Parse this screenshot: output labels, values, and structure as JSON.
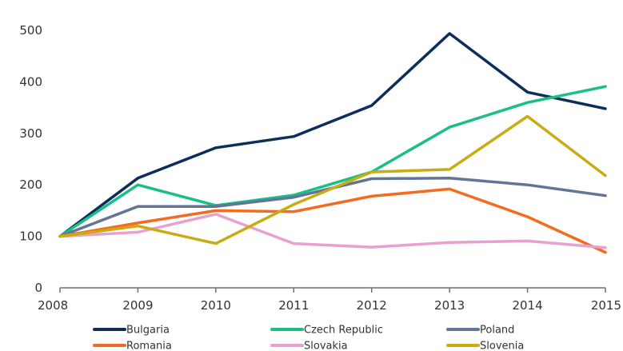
{
  "chart_data": {
    "type": "line",
    "title": "",
    "xlabel": "",
    "ylabel": "",
    "x": [
      "2008",
      "2009",
      "2010",
      "2011",
      "2012",
      "2013",
      "2014",
      "2015"
    ],
    "ylim": [
      0,
      500
    ],
    "yticks": [
      "0",
      "100",
      "200",
      "300",
      "400",
      "500"
    ],
    "grid": false,
    "legend_position": "bottom",
    "series": [
      {
        "name": "Bulgaria",
        "color": "#0d2d5a",
        "values": [
          100,
          213,
          272,
          294,
          354,
          494,
          380,
          348
        ]
      },
      {
        "name": "Czech Republic",
        "color": "#19bf84",
        "values": [
          100,
          200,
          160,
          180,
          225,
          312,
          360,
          391
        ]
      },
      {
        "name": "Poland",
        "color": "#637597",
        "values": [
          100,
          158,
          158,
          176,
          212,
          213,
          200,
          179
        ]
      },
      {
        "name": "Romania",
        "color": "#f36b21",
        "values": [
          100,
          126,
          150,
          148,
          178,
          192,
          138,
          69
        ]
      },
      {
        "name": "Slovakia",
        "color": "#e8a1cf",
        "values": [
          100,
          108,
          143,
          86,
          79,
          88,
          91,
          78
        ]
      },
      {
        "name": "Slovenia",
        "color": "#c9ab13",
        "values": [
          100,
          120,
          86,
          162,
          225,
          230,
          333,
          218
        ]
      }
    ]
  }
}
